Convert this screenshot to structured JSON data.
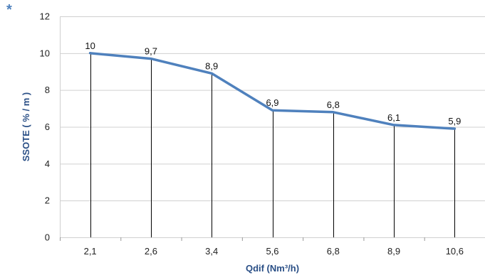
{
  "marker": "*",
  "colors": {
    "line": "#4f81bd",
    "axis_title": "#2a4f86",
    "marker": "#4f81bd",
    "grid": "#d0d0d0",
    "drop_line": "#000000"
  },
  "chart_data": {
    "type": "line",
    "categories": [
      "2,1",
      "2,6",
      "3,4",
      "5,6",
      "6,8",
      "8,9",
      "10,6"
    ],
    "values": [
      10,
      9.7,
      8.9,
      6.9,
      6.8,
      6.1,
      5.9
    ],
    "data_labels": [
      "10",
      "9,7",
      "8,9",
      "6,9",
      "6,8",
      "6,1",
      "5,9"
    ],
    "xlabel": "Qdif (Nm³/h)",
    "ylabel": "SSOTE ( % / m )",
    "ylim": [
      0,
      12
    ],
    "yticks": [
      0,
      2,
      4,
      6,
      8,
      10,
      12
    ],
    "grid": true,
    "drop_lines": true,
    "legend": "none"
  }
}
